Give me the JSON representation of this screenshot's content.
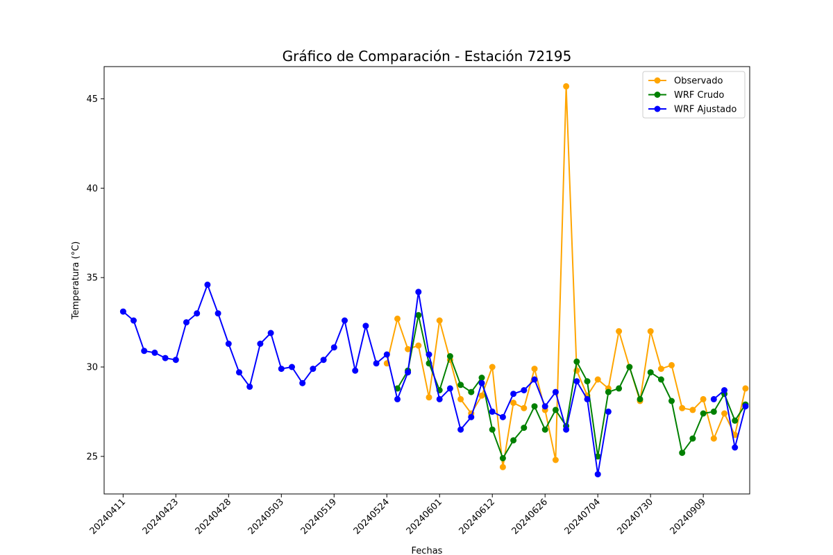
{
  "chart_data": {
    "type": "line",
    "title": "Gráfico de Comparación - Estación 72195",
    "xlabel": "Fechas",
    "ylabel": "Temperatura (°C)",
    "ylim": [
      22.9,
      46.8
    ],
    "yticks": [
      25,
      30,
      35,
      40,
      45
    ],
    "x_index_range": [
      -1.8,
      59.4
    ],
    "x_ticks": [
      {
        "index": 0,
        "label": "20240411"
      },
      {
        "index": 5,
        "label": "20240423"
      },
      {
        "index": 10,
        "label": "20240428"
      },
      {
        "index": 15,
        "label": "20240503"
      },
      {
        "index": 20,
        "label": "20240519"
      },
      {
        "index": 25,
        "label": "20240524"
      },
      {
        "index": 30,
        "label": "20240601"
      },
      {
        "index": 35,
        "label": "20240612"
      },
      {
        "index": 40,
        "label": "20240626"
      },
      {
        "index": 45,
        "label": "20240704"
      },
      {
        "index": 50,
        "label": "20240730"
      },
      {
        "index": 55,
        "label": "20240909"
      }
    ],
    "grid": false,
    "legend_position": "top-right",
    "series": [
      {
        "name": "Observado",
        "color": "#ffa500",
        "start_index": 25,
        "values": [
          30.2,
          32.7,
          31.0,
          31.2,
          28.3,
          32.6,
          30.4,
          28.2,
          27.4,
          28.4,
          30.0,
          24.4,
          28.0,
          27.7,
          29.9,
          27.6,
          24.8,
          45.7,
          29.8,
          28.4,
          29.3,
          28.8,
          32.0,
          30.0,
          28.1,
          32.0,
          29.9,
          30.1,
          27.7,
          27.6,
          28.2,
          26.0,
          27.4,
          26.2,
          28.8
        ]
      },
      {
        "name": "WRF Crudo",
        "color": "#008000",
        "start_index": 26,
        "values": [
          28.8,
          29.8,
          32.9,
          30.2,
          28.7,
          30.6,
          29.0,
          28.6,
          29.4,
          26.5,
          24.9,
          25.9,
          26.6,
          27.8,
          26.5,
          27.6,
          26.7,
          30.3,
          29.2,
          25.0,
          28.6,
          28.8,
          30.0,
          28.2,
          29.7,
          29.3,
          28.1,
          25.2,
          26.0,
          27.4,
          27.5,
          28.5,
          27.0,
          27.9
        ]
      },
      {
        "name": "WRF Ajustado",
        "color": "#0000ff",
        "start_index": 0,
        "values": [
          33.1,
          32.6,
          30.9,
          30.8,
          30.5,
          30.4,
          32.5,
          33.0,
          34.6,
          33.0,
          31.3,
          29.7,
          28.9,
          31.3,
          31.9,
          29.9,
          30.0,
          29.1,
          29.9,
          30.4,
          31.1,
          32.6,
          29.8,
          32.3,
          30.2,
          30.7,
          28.2,
          29.7,
          34.2,
          30.7,
          28.2,
          28.8,
          26.5,
          27.2,
          29.1,
          27.5,
          27.2,
          28.5,
          28.7,
          29.3,
          27.8,
          28.6,
          26.5,
          29.2,
          28.2,
          24.0,
          27.5,
          null,
          null,
          null,
          null,
          null,
          null,
          null,
          null,
          null,
          28.2,
          28.7,
          25.5,
          27.8
        ]
      }
    ]
  }
}
